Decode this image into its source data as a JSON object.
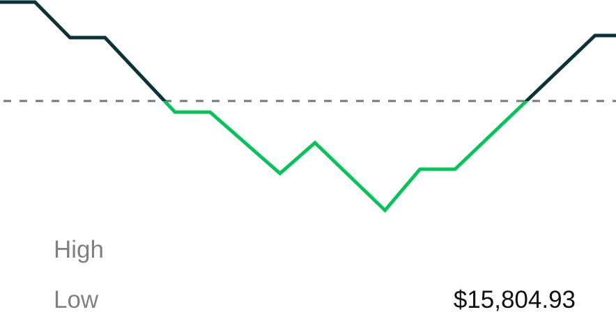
{
  "chart_data": {
    "type": "line",
    "title": "",
    "xlabel": "",
    "ylabel": "",
    "grid": false,
    "x": [
      0,
      1,
      2,
      3,
      5,
      6,
      8,
      9,
      11,
      12,
      13,
      17,
      17.6
    ],
    "series": [
      {
        "values": [
          142,
          142,
          91,
          91,
          -16,
          -16,
          -104,
          -60,
          -157,
          -98,
          -98,
          94,
          94
        ]
      }
    ],
    "ylim": [
      -170,
      145
    ],
    "xlim": [
      0,
      17.6
    ],
    "reference_line": {
      "value": 0,
      "style": "dashed",
      "color": "#767676"
    },
    "colors": {
      "above_reference": "#0b3139",
      "below_reference": "#0bc15c"
    }
  },
  "stats": {
    "high_label": "High",
    "high_value": "",
    "low_label": "Low",
    "low_value": "$15,804.93"
  }
}
